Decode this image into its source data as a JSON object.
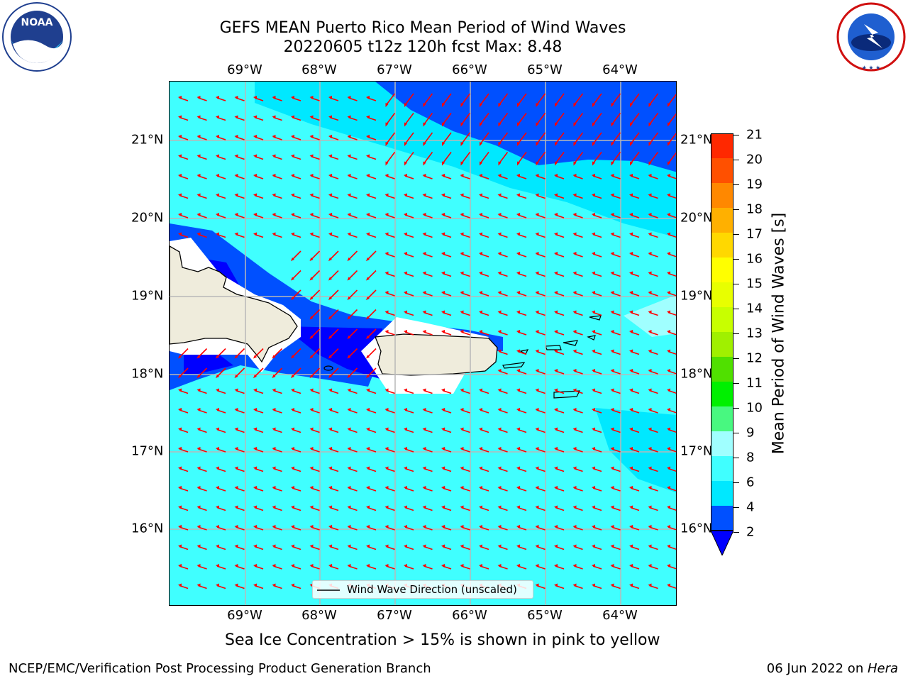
{
  "title": {
    "line1": "GEFS MEAN Puerto Rico Mean Period of Wind Waves",
    "line2": "20220605 t12z 120h fcst   Max: 8.48"
  },
  "logos": {
    "noaa": {
      "text": "NOAA",
      "ring_text": "NATIONAL OCEANIC AND ATMOSPHERIC ADMINISTRATION · U.S. DEPARTMENT OF COMMERCE"
    },
    "nws": {
      "ring_text": "NATIONAL WEATHER SERVICE"
    }
  },
  "map": {
    "lon_labels": [
      "69°W",
      "68°W",
      "67°W",
      "66°W",
      "65°W",
      "64°W"
    ],
    "lat_labels": [
      "21°N",
      "20°N",
      "19°N",
      "18°N",
      "17°N",
      "16°N"
    ],
    "land_color": "#efecdc",
    "arrow_color": "#ff0000",
    "legend_label": "Wind Wave Direction (unscaled)"
  },
  "colorbar": {
    "label": "Mean Period of Wind Waves [s]",
    "ticks": [
      "2",
      "4",
      "6",
      "8",
      "9",
      "10",
      "11",
      "12",
      "13",
      "14",
      "15",
      "16",
      "17",
      "18",
      "19",
      "20",
      "21"
    ],
    "colors": [
      "#0050ff",
      "#00e8ff",
      "#40ffff",
      "#a0ffff",
      "#48f880",
      "#00f000",
      "#50e000",
      "#a0f000",
      "#c8ff00",
      "#e8ff00",
      "#ffff00",
      "#ffd800",
      "#ffb000",
      "#ff8800",
      "#ff5000",
      "#ff2800",
      "#ff0000"
    ],
    "under_color": "#0000ff"
  },
  "footer": {
    "ice_note": "Sea Ice Concentration > 15% is shown in pink to yellow",
    "left": "NCEP/EMC/Verification Post Processing Product Generation Branch",
    "right_date": "06 Jun 2022 on ",
    "right_host": "Hera"
  }
}
